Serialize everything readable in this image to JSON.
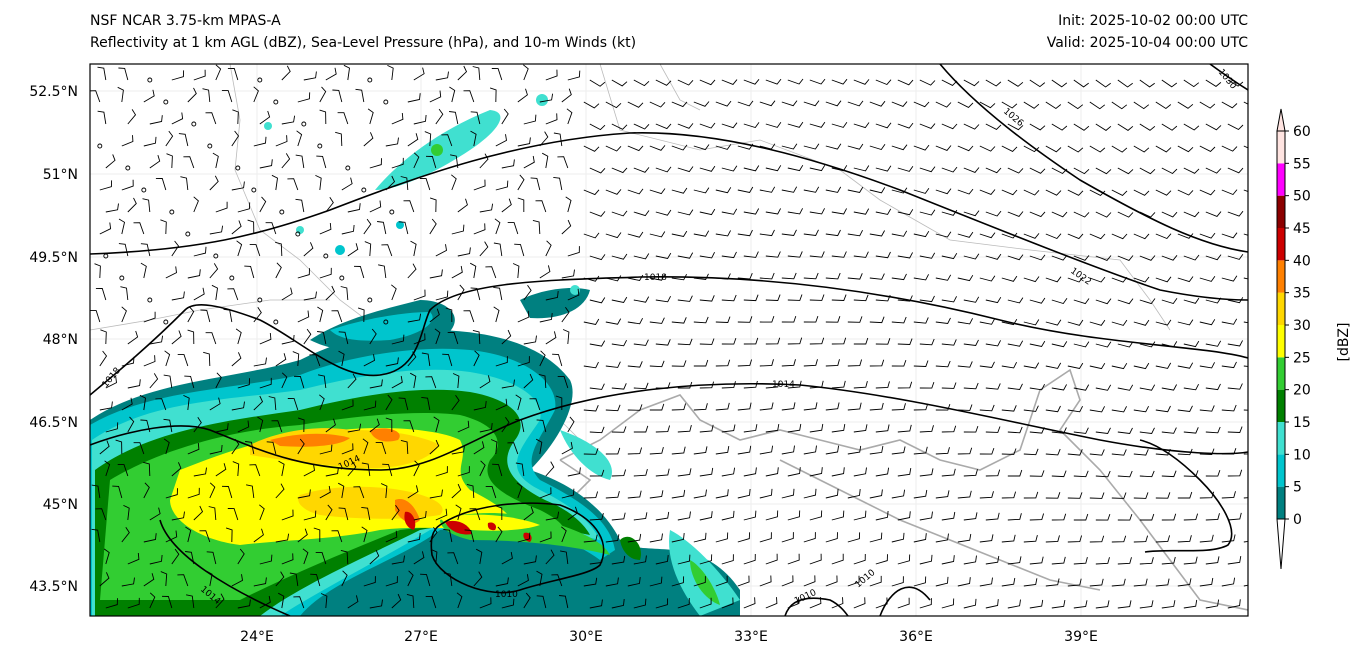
{
  "header": {
    "title_line1": "NSF NCAR 3.75-km MPAS-A",
    "title_line2": "Reflectivity at 1 km AGL (dBZ), Sea-Level Pressure (hPa), and 10-m Winds (kt)",
    "init": "Init: 2025-10-02 00:00 UTC",
    "valid": "Valid: 2025-10-04 00:00 UTC"
  },
  "map": {
    "lat_labels": [
      "52.5°N",
      "51°N",
      "49.5°N",
      "48°N",
      "46.5°N",
      "45°N",
      "43.5°N"
    ],
    "lon_labels": [
      "24°E",
      "27°E",
      "30°E",
      "33°E",
      "36°E",
      "39°E"
    ],
    "isobar_labels": [
      "1010",
      "1010",
      "1010",
      "1014",
      "1014",
      "1014",
      "1018",
      "1018",
      "1022",
      "1026",
      "1030"
    ]
  },
  "colorbar": {
    "label": "[dBZ]",
    "ticks": [
      "0",
      "5",
      "10",
      "15",
      "20",
      "25",
      "30",
      "35",
      "40",
      "45",
      "50",
      "55",
      "60"
    ],
    "colors": [
      "#008080",
      "#00c5cd",
      "#40e0d0",
      "#008000",
      "#32cd32",
      "#ffff00",
      "#ffd700",
      "#ff8000",
      "#cc0000",
      "#8b0000",
      "#ff00ff",
      "#ffe4e1"
    ]
  }
}
